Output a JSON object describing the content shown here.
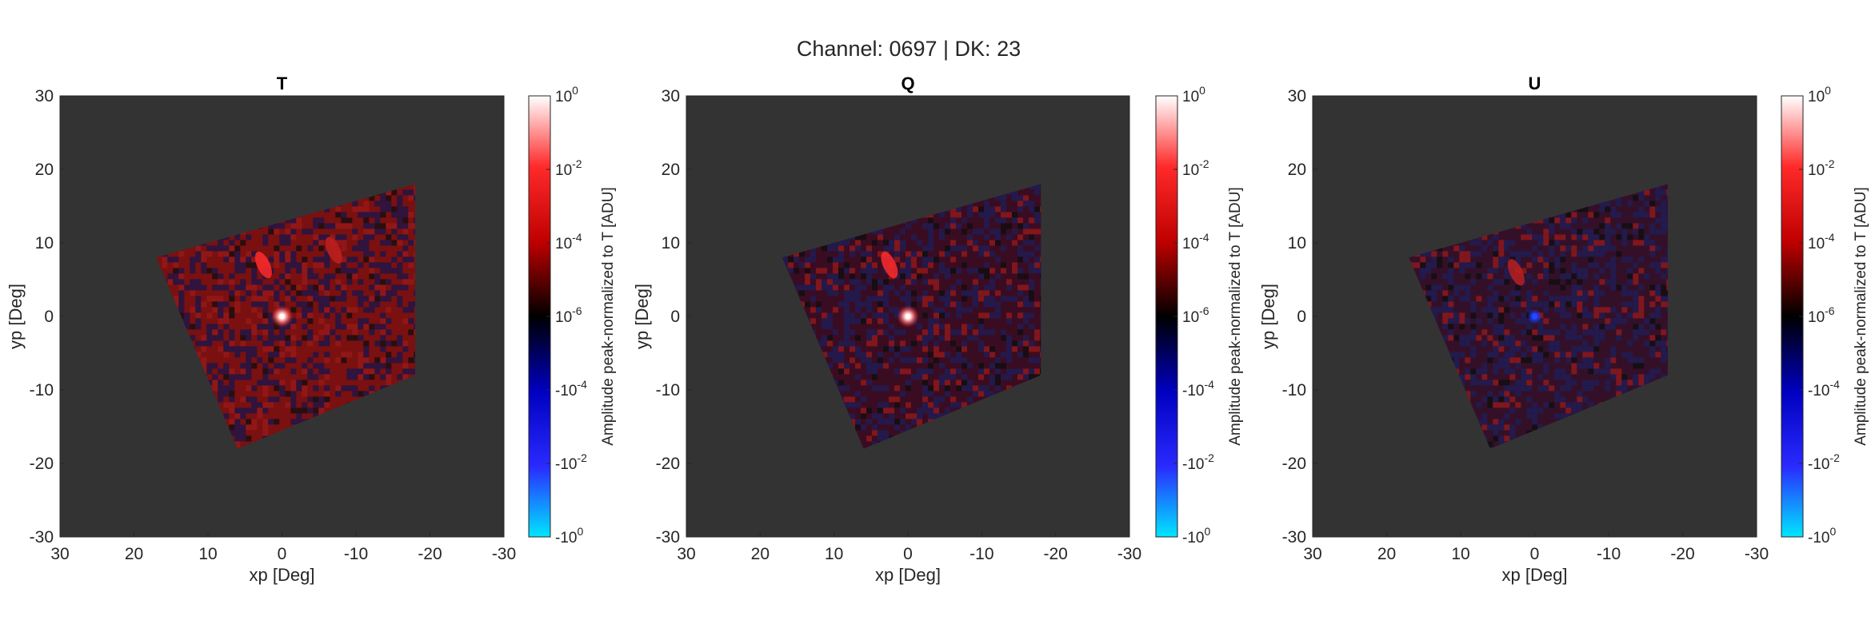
{
  "figure": {
    "suptitle": "Channel: 0697 | DK: 23"
  },
  "chart_data": [
    {
      "type": "heatmap",
      "title": "T",
      "xlabel": "xp [Deg]",
      "ylabel": "yp [Deg]",
      "xlim": [
        30,
        -30
      ],
      "ylim": [
        -30,
        30
      ],
      "x_reversed": true,
      "xticks": [
        30,
        20,
        10,
        0,
        -10,
        -20,
        -30
      ],
      "yticks": [
        30,
        20,
        10,
        0,
        -10,
        -20,
        -30
      ],
      "xtick_labels": [
        "30",
        "20",
        "10",
        "0",
        "-10",
        "-20",
        "-30"
      ],
      "ytick_labels": [
        "30",
        "20",
        "10",
        "0",
        "-10",
        "-20",
        "-30"
      ],
      "background_color": "#333333",
      "colormap": "symmetric log: cyan-blue-black-red-white",
      "colorbar": {
        "label": "Amplitude peak-normalized to T [ADU]",
        "ticks": [
          {
            "mant": "10",
            "exp": "0"
          },
          {
            "mant": "10",
            "exp": "-2"
          },
          {
            "mant": "10",
            "exp": "-4"
          },
          {
            "mant": "10",
            "exp": "-6"
          },
          {
            "mant": "-10",
            "exp": "-4"
          },
          {
            "mant": "-10",
            "exp": "-2"
          },
          {
            "mant": "-10",
            "exp": "0"
          }
        ]
      },
      "map_corners": [
        [
          -18,
          18
        ],
        [
          -18,
          -8
        ],
        [
          6,
          -18
        ],
        [
          17,
          8
        ]
      ],
      "dominant_color": "#7a1010",
      "dominant_secondary": "#16164e",
      "peak": {
        "x": 0,
        "y": 0,
        "color": "#ffffff"
      },
      "features": [
        {
          "x": 2.5,
          "y": 7,
          "color": "#ff2a2a"
        },
        {
          "x": -7,
          "y": 9,
          "color": "#c02020"
        }
      ]
    },
    {
      "type": "heatmap",
      "title": "Q",
      "xlabel": "xp [Deg]",
      "ylabel": "yp [Deg]",
      "xlim": [
        30,
        -30
      ],
      "ylim": [
        -30,
        30
      ],
      "x_reversed": true,
      "xticks": [
        30,
        20,
        10,
        0,
        -10,
        -20,
        -30
      ],
      "yticks": [
        30,
        20,
        10,
        0,
        -10,
        -20,
        -30
      ],
      "xtick_labels": [
        "30",
        "20",
        "10",
        "0",
        "-10",
        "-20",
        "-30"
      ],
      "ytick_labels": [
        "30",
        "20",
        "10",
        "0",
        "-10",
        "-20",
        "-30"
      ],
      "background_color": "#333333",
      "colormap": "symmetric log: cyan-blue-black-red-white",
      "colorbar": {
        "label": "Amplitude peak-normalized to T [ADU]",
        "ticks": [
          {
            "mant": "10",
            "exp": "0"
          },
          {
            "mant": "10",
            "exp": "-2"
          },
          {
            "mant": "10",
            "exp": "-4"
          },
          {
            "mant": "10",
            "exp": "-6"
          },
          {
            "mant": "-10",
            "exp": "-4"
          },
          {
            "mant": "-10",
            "exp": "-2"
          },
          {
            "mant": "-10",
            "exp": "0"
          }
        ]
      },
      "map_corners": [
        [
          -18,
          18
        ],
        [
          -18,
          -8
        ],
        [
          6,
          -18
        ],
        [
          17,
          8
        ]
      ],
      "dominant_color": "#3a0c22",
      "dominant_secondary": "#1e1e5a",
      "peak": {
        "x": 0,
        "y": 0,
        "color": "#ffffff"
      },
      "features": [
        {
          "x": 2.5,
          "y": 7,
          "color": "#ff2a2a"
        }
      ]
    },
    {
      "type": "heatmap",
      "title": "U",
      "xlabel": "xp [Deg]",
      "ylabel": "yp [Deg]",
      "xlim": [
        30,
        -30
      ],
      "ylim": [
        -30,
        30
      ],
      "x_reversed": true,
      "xticks": [
        30,
        20,
        10,
        0,
        -10,
        -20,
        -30
      ],
      "yticks": [
        30,
        20,
        10,
        0,
        -10,
        -20,
        -30
      ],
      "xtick_labels": [
        "30",
        "20",
        "10",
        "0",
        "-10",
        "-20",
        "-30"
      ],
      "ytick_labels": [
        "30",
        "20",
        "10",
        "0",
        "-10",
        "-20",
        "-30"
      ],
      "background_color": "#333333",
      "colormap": "symmetric log: cyan-blue-black-red-white",
      "colorbar": {
        "label": "Amplitude peak-normalized to T [ADU]",
        "ticks": [
          {
            "mant": "10",
            "exp": "0"
          },
          {
            "mant": "10",
            "exp": "-2"
          },
          {
            "mant": "10",
            "exp": "-4"
          },
          {
            "mant": "10",
            "exp": "-6"
          },
          {
            "mant": "-10",
            "exp": "-4"
          },
          {
            "mant": "-10",
            "exp": "-2"
          },
          {
            "mant": "-10",
            "exp": "0"
          }
        ]
      },
      "map_corners": [
        [
          -18,
          18
        ],
        [
          -18,
          -8
        ],
        [
          6,
          -18
        ],
        [
          17,
          8
        ]
      ],
      "dominant_color": "#341028",
      "dominant_secondary": "#1e1e5a",
      "peak": {
        "x": 0,
        "y": 0,
        "color": "#1f4cff"
      },
      "features": [
        {
          "x": 2.5,
          "y": 6,
          "color": "#b82020"
        }
      ]
    }
  ]
}
